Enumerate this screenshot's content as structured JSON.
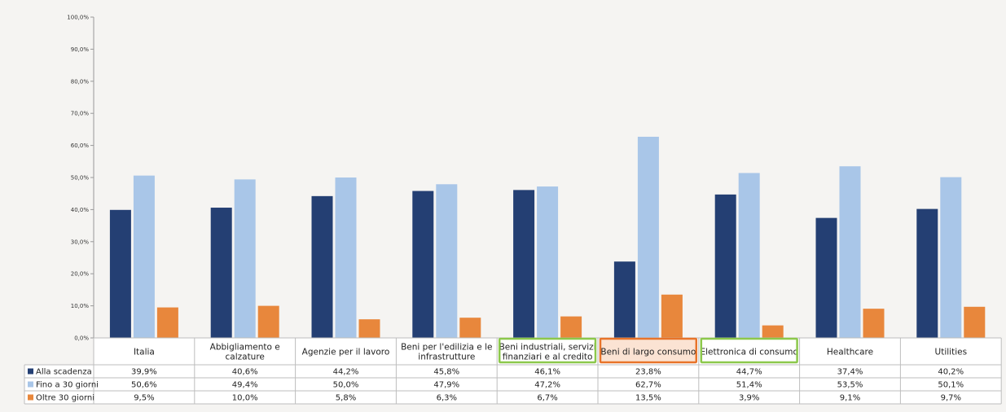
{
  "chart_data": {
    "type": "bar",
    "categories": [
      "Italia",
      "Abbigliamento e calzature",
      "Agenzie per il lavoro",
      "Beni per l'edilizia e le infrastrutture",
      "Beni industriali, servizi finanziari e al credito",
      "Beni di largo consumo",
      "Elettronica di consumo",
      "Healthcare",
      "Utilities"
    ],
    "category_lines": [
      [
        "Italia"
      ],
      [
        "Abbigliamento e",
        "calzature"
      ],
      [
        "Agenzie per il lavoro"
      ],
      [
        "Beni per l'edilizia e le",
        "infrastrutture"
      ],
      [
        "Beni industriali, servizi",
        "finanziari e al credito"
      ],
      [
        "Beni di largo consumo"
      ],
      [
        "Elettronica di consumo"
      ],
      [
        "Healthcare"
      ],
      [
        "Utilities"
      ]
    ],
    "series": [
      {
        "name": "Alla scadenza",
        "color": "#243f73",
        "values": [
          39.9,
          40.6,
          44.2,
          45.8,
          46.1,
          23.8,
          44.7,
          37.4,
          40.2
        ],
        "labels": [
          "39,9%",
          "40,6%",
          "44,2%",
          "45,8%",
          "46,1%",
          "23,8%",
          "44,7%",
          "37,4%",
          "40,2%"
        ]
      },
      {
        "name": "Fino a 30 giorni",
        "color": "#a9c6e8",
        "values": [
          50.6,
          49.4,
          50.0,
          47.9,
          47.2,
          62.7,
          51.4,
          53.5,
          50.1
        ],
        "labels": [
          "50,6%",
          "49,4%",
          "50,0%",
          "47,9%",
          "47,2%",
          "62,7%",
          "51,4%",
          "53,5%",
          "50,1%"
        ]
      },
      {
        "name": "Oltre 30 giorni",
        "color": "#e8873c",
        "values": [
          9.5,
          10.0,
          5.8,
          6.3,
          6.7,
          13.5,
          3.9,
          9.1,
          9.7
        ],
        "labels": [
          "9,5%",
          "10,0%",
          "5,8%",
          "6,3%",
          "6,7%",
          "13,5%",
          "3,9%",
          "9,1%",
          "9,7%"
        ]
      }
    ],
    "ylim": [
      0,
      100
    ],
    "yticks": [
      "0,0%",
      "10,0%",
      "20,0%",
      "30,0%",
      "40,0%",
      "50,0%",
      "60,0%",
      "70,0%",
      "80,0%",
      "90,0%",
      "100,0%"
    ],
    "legend": "data-table",
    "grid": false,
    "highlights": [
      {
        "category_index": 4,
        "border": "#8cc84b",
        "fill": "none"
      },
      {
        "category_index": 5,
        "border": "#e8742a",
        "fill": "#fbe3d3"
      },
      {
        "category_index": 6,
        "border": "#8cc84b",
        "fill": "none"
      }
    ]
  }
}
